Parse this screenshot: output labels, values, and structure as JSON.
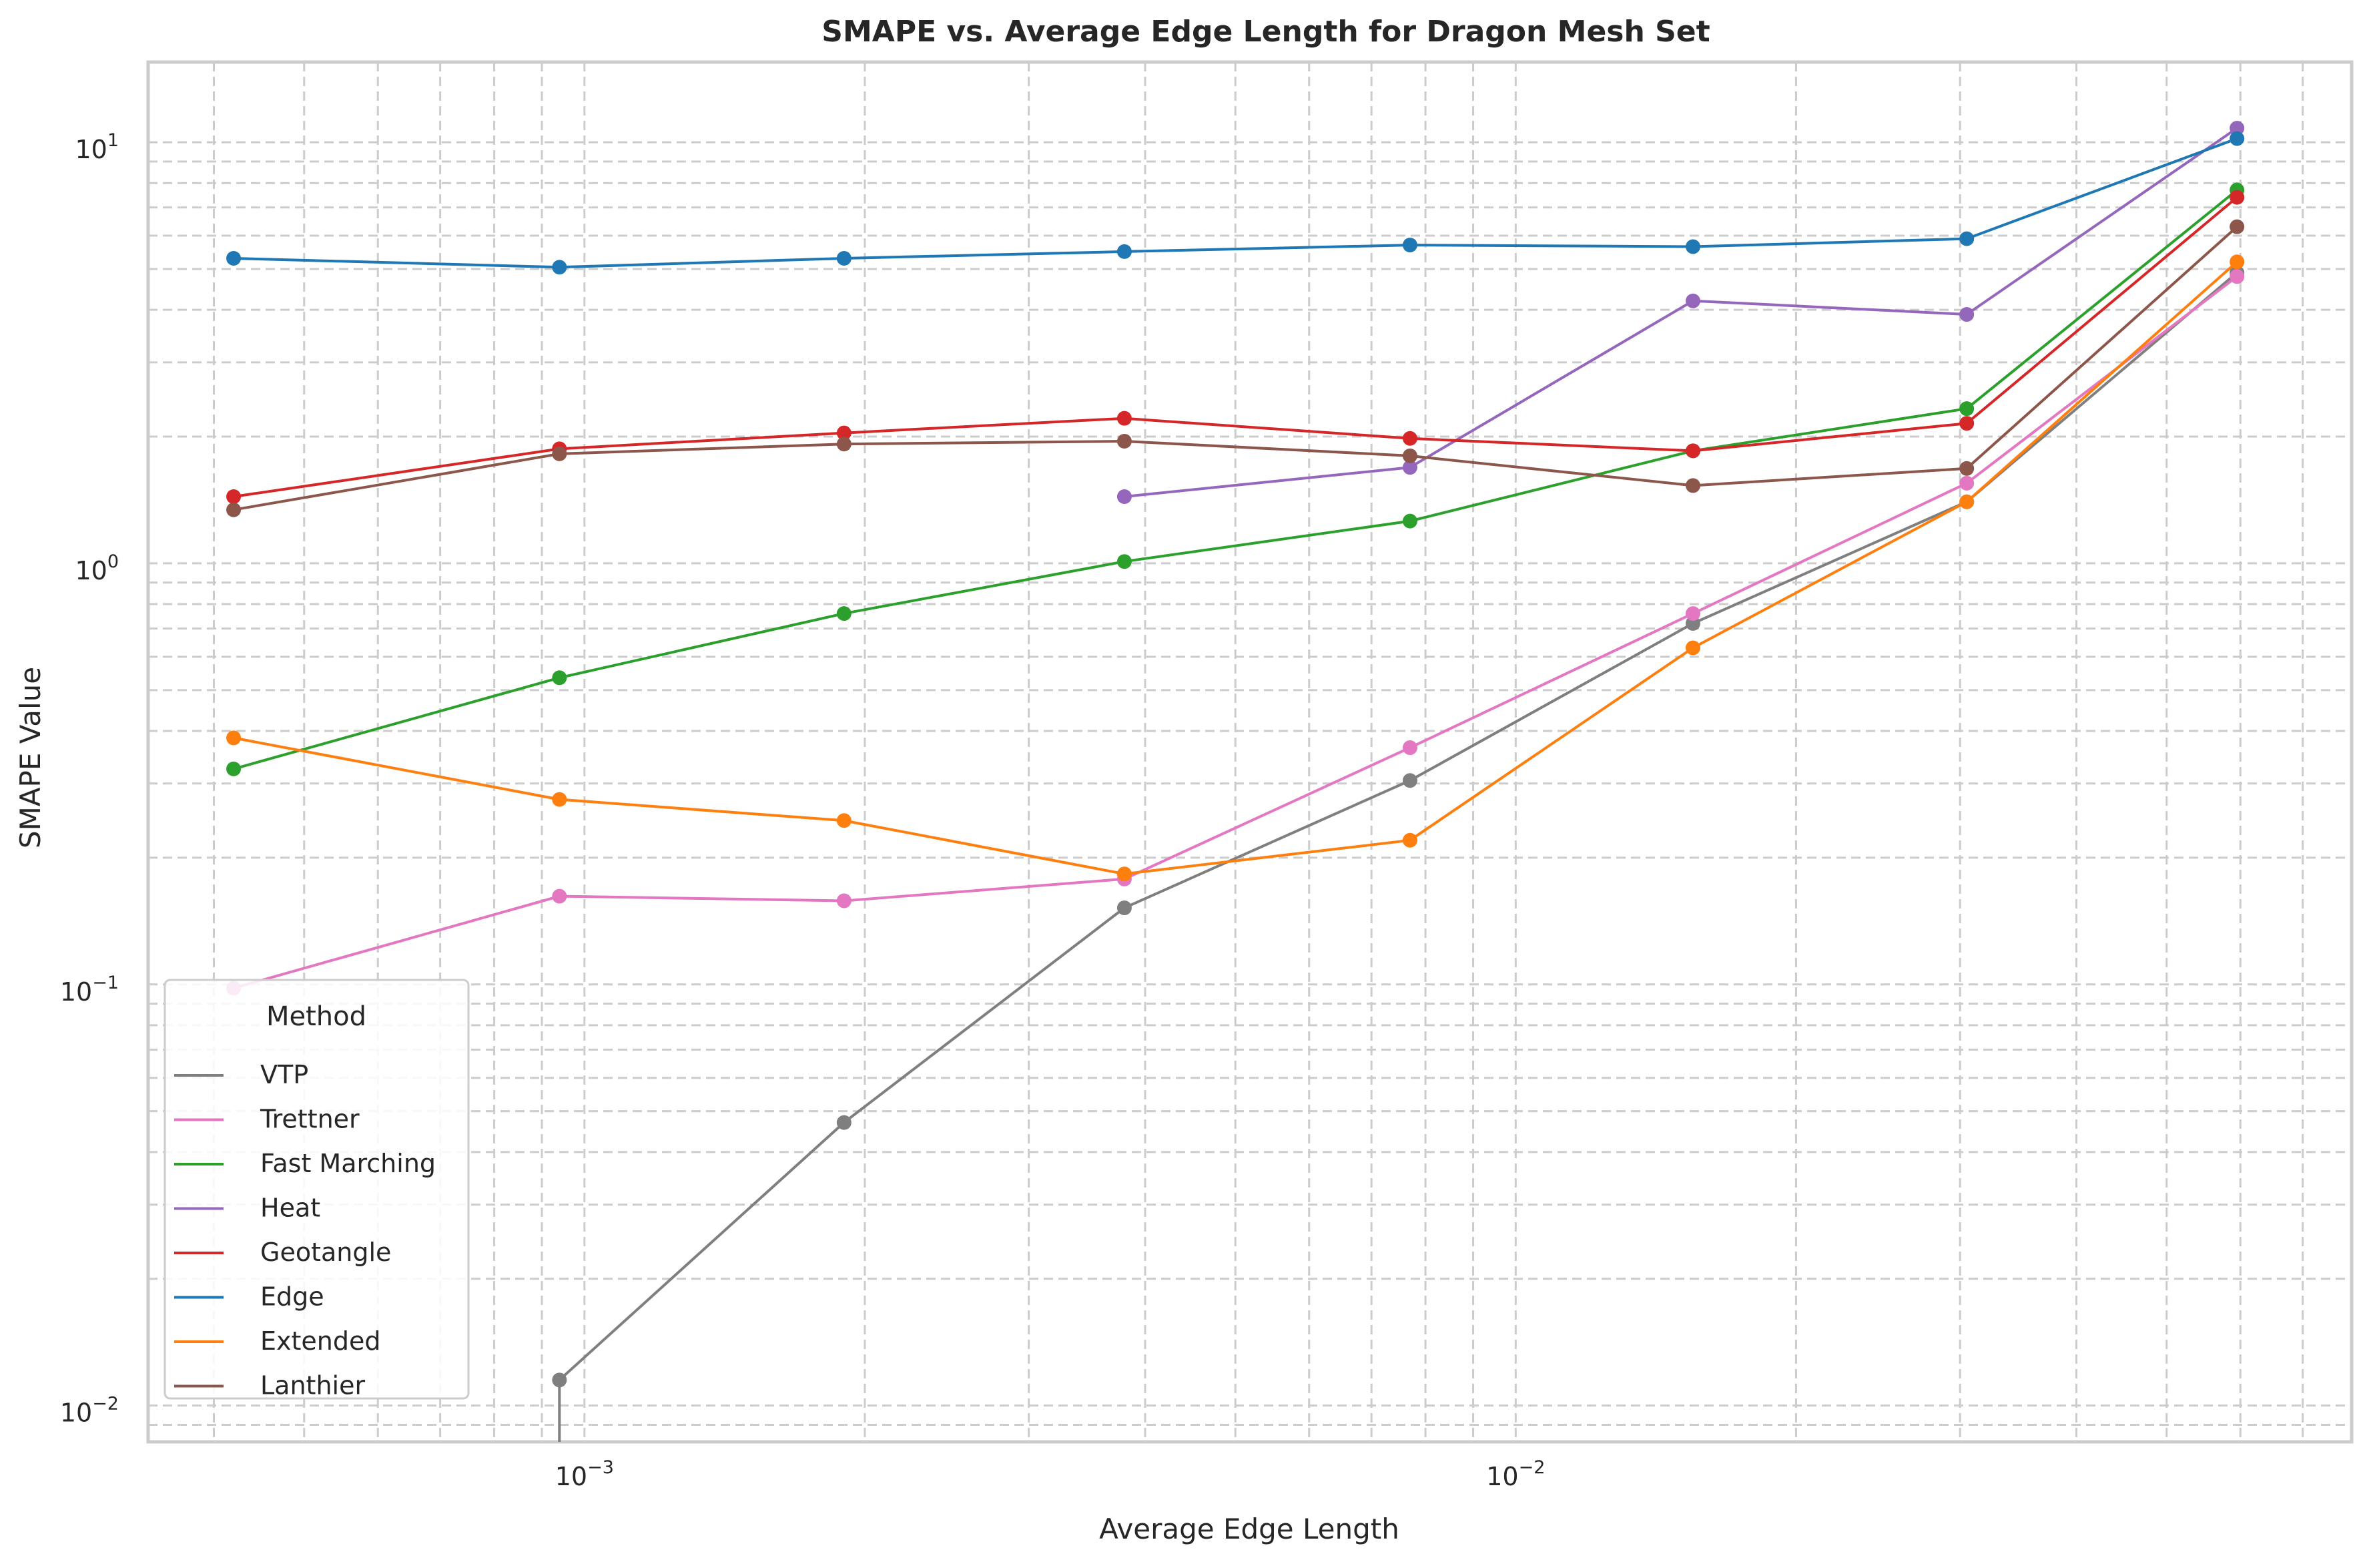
{
  "chart_data": {
    "type": "line",
    "title": "SMAPE vs. Average Edge Length for Dragon Mesh Set",
    "xlabel": "Average Edge Length",
    "ylabel": "SMAPE Value",
    "xscale": "log",
    "yscale": "log",
    "xlim": [
      0.00034,
      0.079
    ],
    "ylim": [
      0.0082,
      15.5
    ],
    "grid": true,
    "legend": {
      "title": "Method",
      "placement": "lower-left"
    },
    "x_ticks": [
      {
        "value": 0.001,
        "base": "10",
        "exp": "−3"
      },
      {
        "value": 0.01,
        "base": "10",
        "exp": "−2"
      }
    ],
    "y_ticks": [
      {
        "value": 0.01,
        "base": "10",
        "exp": "−2"
      },
      {
        "value": 0.1,
        "base": "10",
        "exp": "−1"
      },
      {
        "value": 1,
        "base": "10",
        "exp": "0"
      },
      {
        "value": 10,
        "base": "10",
        "exp": "1"
      }
    ],
    "x": [
      0.00042,
      0.00094,
      0.0019,
      0.0038,
      0.0077,
      0.0155,
      0.0305,
      0.0595
    ],
    "series": [
      {
        "name": "VTP",
        "color": "#7f7f7f",
        "values": [
          null,
          0.0115,
          0.047,
          0.152,
          0.305,
          0.72,
          1.4,
          4.9
        ],
        "continues_below_axis": true
      },
      {
        "name": "Trettner",
        "color": "#e377c2",
        "values": [
          0.098,
          0.162,
          0.158,
          0.178,
          0.365,
          0.76,
          1.55,
          4.8
        ]
      },
      {
        "name": "Fast Marching",
        "color": "#2ca02c",
        "values": [
          0.325,
          0.535,
          0.76,
          1.01,
          1.26,
          1.85,
          2.33,
          7.7
        ]
      },
      {
        "name": "Heat",
        "color": "#9467bd",
        "values": [
          null,
          null,
          null,
          1.44,
          1.69,
          4.2,
          3.9,
          10.8
        ]
      },
      {
        "name": "Geotangle",
        "color": "#d62728",
        "values": [
          1.44,
          1.87,
          2.04,
          2.21,
          1.98,
          1.85,
          2.15,
          7.4
        ]
      },
      {
        "name": "Edge",
        "color": "#1f77b4",
        "values": [
          5.3,
          5.05,
          5.3,
          5.5,
          5.7,
          5.65,
          5.9,
          10.2
        ]
      },
      {
        "name": "Extended",
        "color": "#ff7f0e",
        "values": [
          0.385,
          0.275,
          0.245,
          0.183,
          0.22,
          0.63,
          1.4,
          5.2
        ]
      },
      {
        "name": "Lanthier",
        "color": "#8c564b",
        "values": [
          1.34,
          1.82,
          1.92,
          1.95,
          1.8,
          1.53,
          1.68,
          6.3
        ]
      }
    ]
  }
}
